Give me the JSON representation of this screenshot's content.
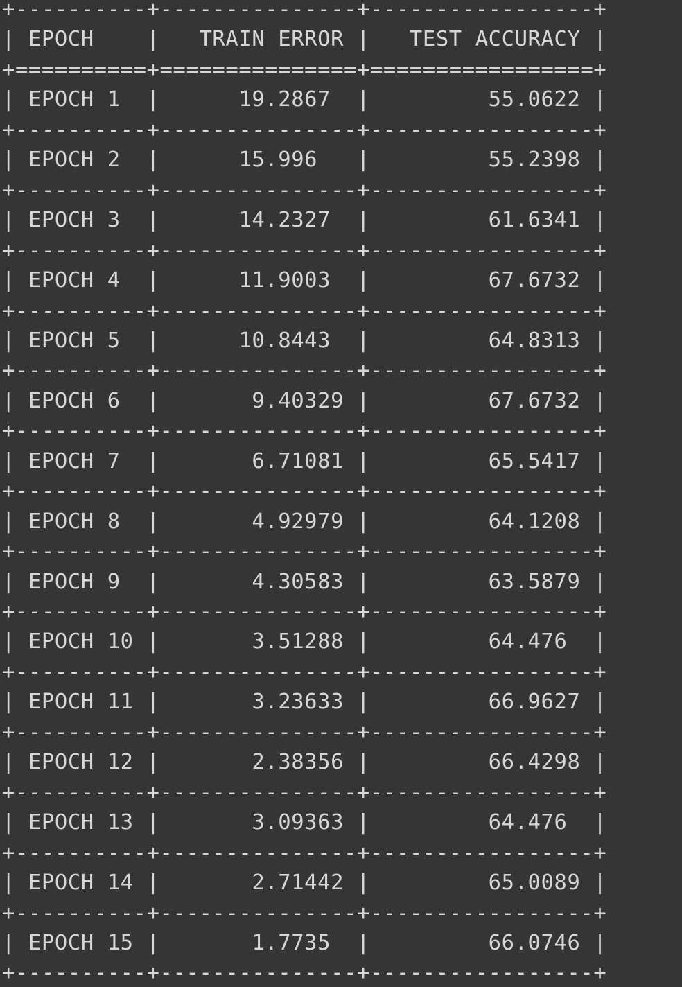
{
  "table": {
    "headers": [
      "EPOCH",
      "TRAIN ERROR",
      "TEST ACCURACY"
    ],
    "rows": [
      [
        "EPOCH 1",
        "19.2867",
        "55.0622"
      ],
      [
        "EPOCH 2",
        "15.996",
        "55.2398"
      ],
      [
        "EPOCH 3",
        "14.2327",
        "61.6341"
      ],
      [
        "EPOCH 4",
        "11.9003",
        "67.6732"
      ],
      [
        "EPOCH 5",
        "10.8443",
        "64.8313"
      ],
      [
        "EPOCH 6",
        "9.40329",
        "67.6732"
      ],
      [
        "EPOCH 7",
        "6.71081",
        "65.5417"
      ],
      [
        "EPOCH 8",
        "4.92979",
        "64.1208"
      ],
      [
        "EPOCH 9",
        "4.30583",
        "63.5879"
      ],
      [
        "EPOCH 10",
        "3.51288",
        "64.476"
      ],
      [
        "EPOCH 11",
        "3.23633",
        "66.9627"
      ],
      [
        "EPOCH 12",
        "2.38356",
        "66.4298"
      ],
      [
        "EPOCH 13",
        "3.09363",
        "64.476"
      ],
      [
        "EPOCH 14",
        "2.71442",
        "65.0089"
      ],
      [
        "EPOCH 15",
        "1.7735",
        "66.0746"
      ]
    ]
  }
}
